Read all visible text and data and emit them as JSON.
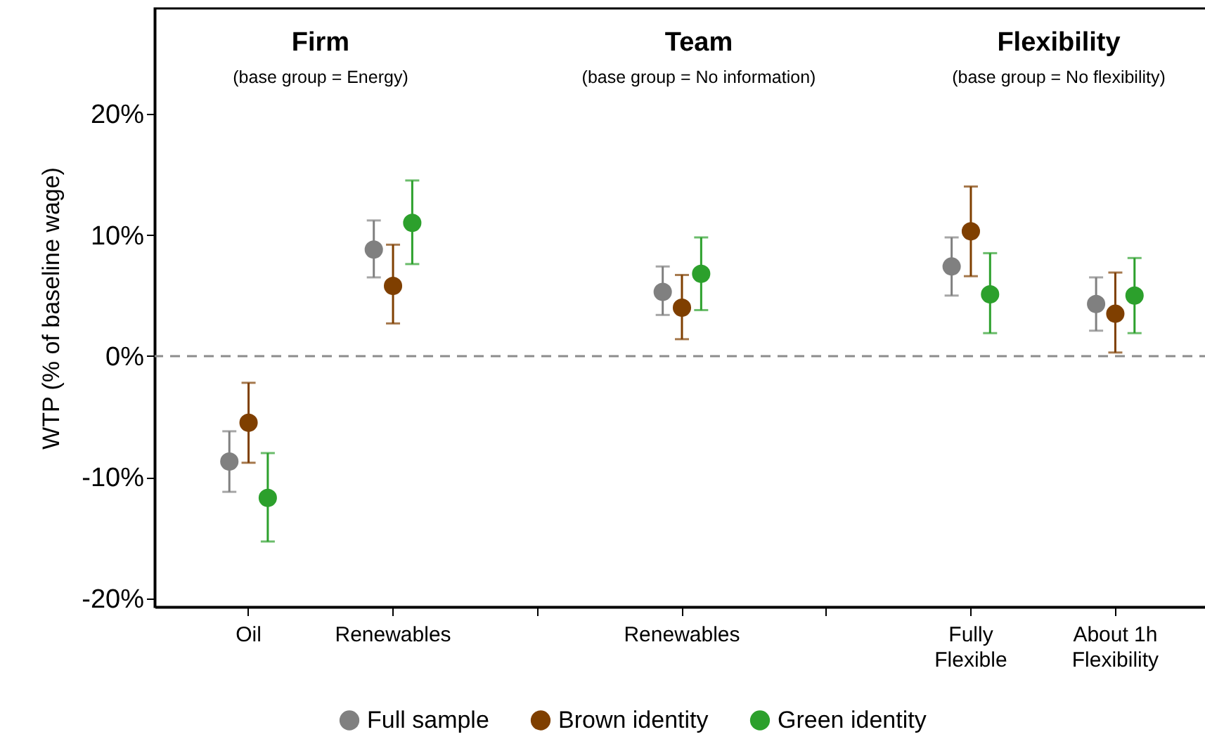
{
  "chart_data": {
    "type": "scatter",
    "categories": [
      "Oil",
      "Renewables",
      null,
      "Renewables",
      null,
      "Fully\nFlexible",
      "About 1h\nFlexibility"
    ],
    "series": [
      {
        "name": "Full sample",
        "color": "#808080",
        "values": [
          -8.7,
          8.8,
          null,
          5.3,
          null,
          7.4,
          4.3
        ],
        "errors": [
          [
            -11.2,
            -6.2
          ],
          [
            6.5,
            11.2
          ],
          null,
          [
            3.4,
            7.4
          ],
          null,
          [
            5.0,
            9.8
          ],
          [
            2.1,
            6.5
          ]
        ]
      },
      {
        "name": "Brown identity",
        "color": "#7f3f00",
        "values": [
          -5.5,
          5.8,
          null,
          4.0,
          null,
          10.3,
          3.5
        ],
        "errors": [
          [
            -8.8,
            -2.2
          ],
          [
            2.7,
            9.2
          ],
          null,
          [
            1.4,
            6.7
          ],
          null,
          [
            6.6,
            14.0
          ],
          [
            0.3,
            6.9
          ]
        ]
      },
      {
        "name": "Green identity",
        "color": "#2ca02c",
        "values": [
          -11.7,
          11.0,
          null,
          6.8,
          null,
          5.1,
          5.0
        ],
        "errors": [
          [
            -15.3,
            -8.0
          ],
          [
            7.6,
            14.5
          ],
          null,
          [
            3.8,
            9.8
          ],
          null,
          [
            1.9,
            8.5
          ],
          [
            1.9,
            8.1
          ]
        ]
      }
    ],
    "ylabel": "WTP (% of baseline wage)",
    "ylim": [
      -20.7,
      28.7
    ],
    "yticks": [
      {
        "value": -20,
        "label": "-20%"
      },
      {
        "value": -10,
        "label": "-10%"
      },
      {
        "value": 0,
        "label": "0%"
      },
      {
        "value": 10,
        "label": "10%"
      },
      {
        "value": 20,
        "label": "20%"
      }
    ],
    "ref_lines": [
      {
        "axis": "y",
        "value": 0,
        "color": "#8c8c8c",
        "line_style": "dashed"
      }
    ],
    "annotations": [
      "Firm",
      "(base group = Energy)",
      "Team",
      "(base group = No information)",
      "Flexibility",
      "(base group = No flexibility)"
    ],
    "legend": "bottom",
    "marker": "circle",
    "grid": false
  }
}
